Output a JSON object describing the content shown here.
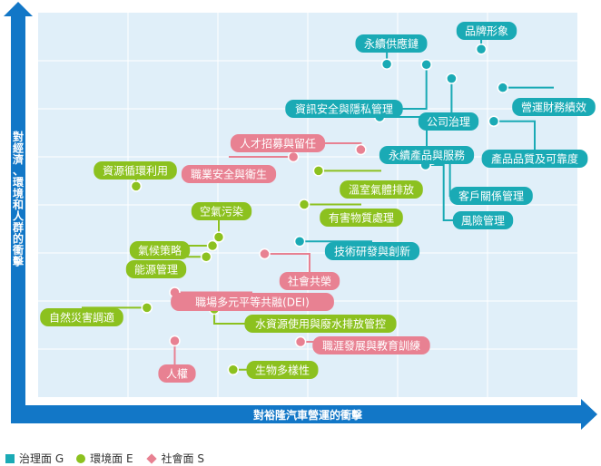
{
  "colors": {
    "G": "#1aaab5",
    "E": "#8cc11f",
    "S": "#e88192",
    "axis": "#1277c7",
    "plot_bg": "#e0eff9",
    "grid": "#ffffff"
  },
  "chart_data": {
    "type": "scatter",
    "xlabel": "對裕隆汽車營運的衝擊",
    "ylabel": "對經濟、環境和人群的衝擊",
    "xlim": [
      0,
      6
    ],
    "ylim": [
      0,
      8
    ],
    "grid": true,
    "legend": [
      {
        "key": "G",
        "label": "治理面 G",
        "shape": "square"
      },
      {
        "key": "E",
        "label": "環境面 E",
        "shape": "circle"
      },
      {
        "key": "S",
        "label": "社會面 S",
        "shape": "diamond"
      }
    ],
    "points": [
      {
        "label": "品牌形象",
        "cat": "G",
        "x": 4.93,
        "y": 7.24
      },
      {
        "label": "永續供應鏈",
        "cat": "G",
        "x": 3.88,
        "y": 6.93
      },
      {
        "label": "資訊安全與隱私管理",
        "cat": "G",
        "x": 4.32,
        "y": 6.92
      },
      {
        "label": "公司治理",
        "cat": "G",
        "x": 4.6,
        "y": 6.63
      },
      {
        "label": "營運財務績效",
        "cat": "G",
        "x": 5.17,
        "y": 6.44
      },
      {
        "label": "永續產品與服務",
        "cat": "G",
        "x": 3.8,
        "y": 5.83
      },
      {
        "label": "產品品質及可靠度",
        "cat": "G",
        "x": 5.07,
        "y": 5.74
      },
      {
        "label": "客戶關係管理",
        "cat": "G",
        "x": 4.38,
        "y": 4.95
      },
      {
        "label": "風險管理",
        "cat": "G",
        "x": 4.31,
        "y": 4.83
      },
      {
        "label": "技術研發與創新",
        "cat": "G",
        "x": 2.91,
        "y": 3.24
      },
      {
        "label": "人才招募與留任",
        "cat": "S",
        "x": 3.59,
        "y": 5.15
      },
      {
        "label": "職業安全與衛生",
        "cat": "S",
        "x": 2.84,
        "y": 5.0
      },
      {
        "label": "社會共榮",
        "cat": "S",
        "x": 2.52,
        "y": 2.98
      },
      {
        "label": "職場多元平等共融(DEI)",
        "cat": "S",
        "x": 1.52,
        "y": 2.18
      },
      {
        "label": "職涯發展與教育訓練",
        "cat": "S",
        "x": 2.92,
        "y": 1.15
      },
      {
        "label": "人權",
        "cat": "S",
        "x": 1.52,
        "y": 1.17
      },
      {
        "label": "資源循環利用",
        "cat": "E",
        "x": 1.09,
        "y": 4.39
      },
      {
        "label": "溫室氣體排放",
        "cat": "E",
        "x": 3.12,
        "y": 4.71
      },
      {
        "label": "有害物質處理",
        "cat": "E",
        "x": 2.96,
        "y": 4.01
      },
      {
        "label": "空氣污染",
        "cat": "E",
        "x": 2.01,
        "y": 3.33
      },
      {
        "label": "氣候策略",
        "cat": "E",
        "x": 1.94,
        "y": 3.15
      },
      {
        "label": "能源管理",
        "cat": "E",
        "x": 1.87,
        "y": 2.92
      },
      {
        "label": "自然災害調適",
        "cat": "E",
        "x": 1.21,
        "y": 1.86
      },
      {
        "label": "水資源使用與廢水排放管控",
        "cat": "E",
        "x": 1.96,
        "y": 1.83
      },
      {
        "label": "生物多樣性",
        "cat": "E",
        "x": 2.17,
        "y": 0.57
      }
    ]
  }
}
